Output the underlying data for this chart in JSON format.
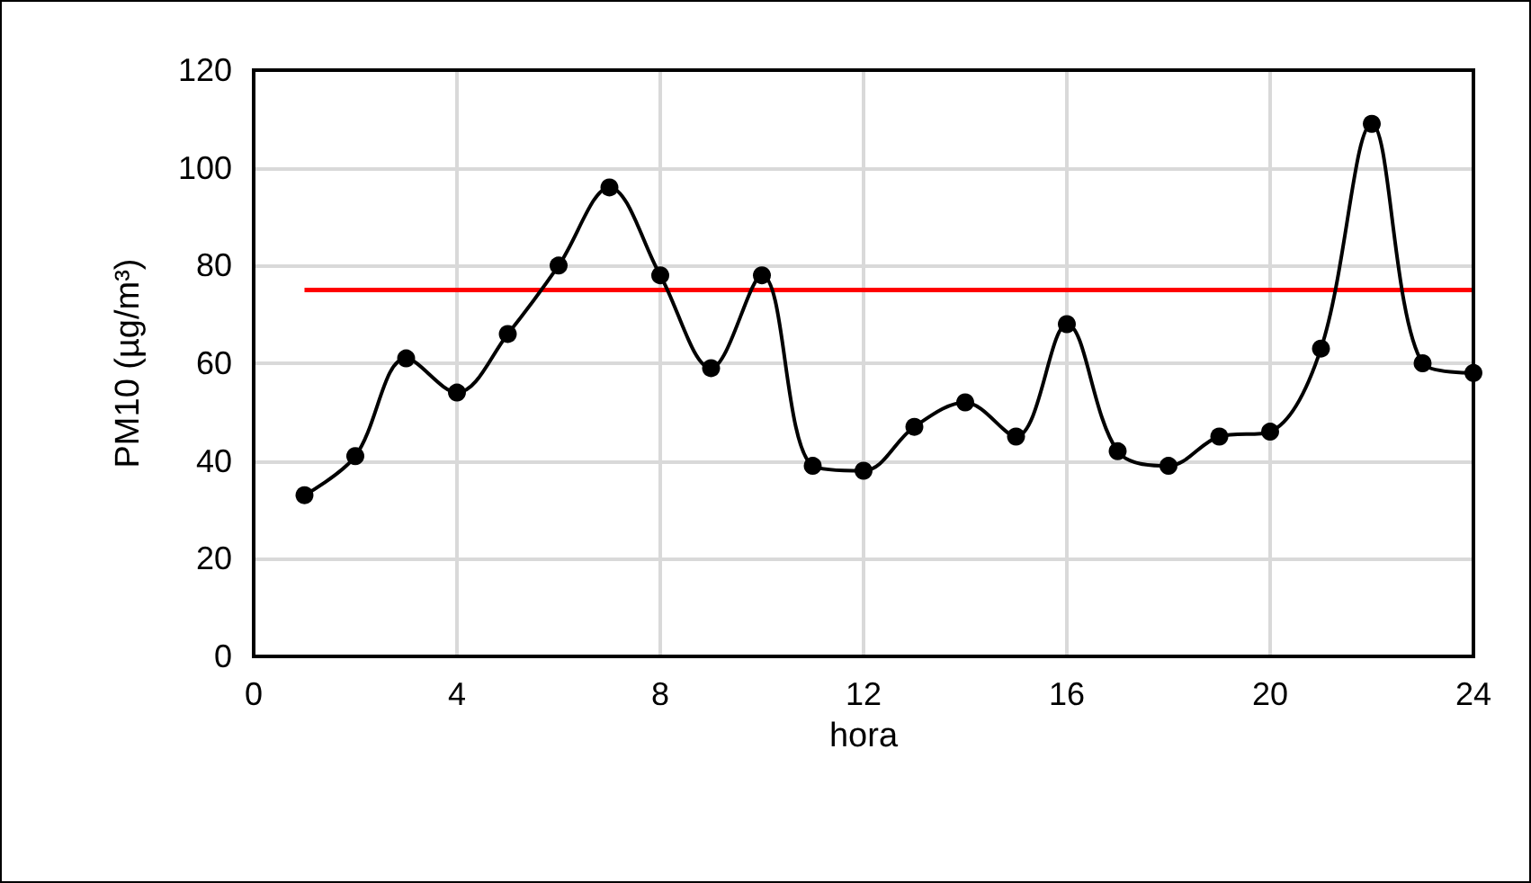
{
  "chart_data": {
    "type": "line",
    "xlabel": "hora",
    "ylabel": "PM10 (µg/m³)",
    "x": [
      1,
      2,
      3,
      4,
      5,
      6,
      7,
      8,
      9,
      10,
      11,
      12,
      13,
      14,
      15,
      16,
      17,
      18,
      19,
      20,
      21,
      22,
      23,
      24
    ],
    "series": [
      {
        "color": "#000000",
        "values": [
          33,
          41,
          61,
          54,
          66,
          80,
          96,
          78,
          59,
          78,
          39,
          38,
          47,
          52,
          45,
          68,
          42,
          39,
          45,
          46,
          63,
          109,
          60,
          58
        ],
        "marker": "circle"
      },
      {
        "color": "#ff0000",
        "x": [
          1,
          24
        ],
        "values": [
          75,
          75
        ],
        "marker": "none"
      }
    ],
    "xlim": [
      0,
      24
    ],
    "xticks": [
      0,
      4,
      8,
      12,
      16,
      20,
      24
    ],
    "ylim": [
      0,
      120
    ],
    "yticks": [
      0,
      20,
      40,
      60,
      80,
      100,
      120
    ],
    "grid": true
  }
}
